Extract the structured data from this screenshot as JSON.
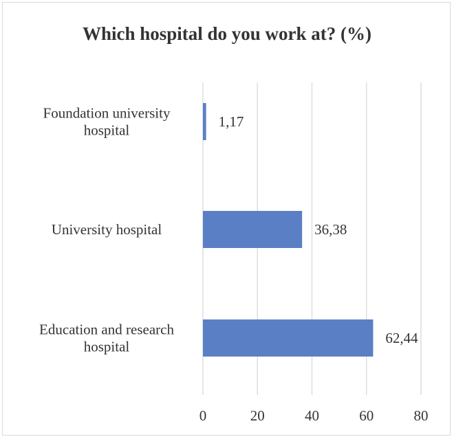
{
  "chart_data": {
    "type": "bar",
    "orientation": "horizontal",
    "title": "Which hospital do you work at? (%)",
    "categories": [
      [
        "Foundation university",
        "hospital"
      ],
      [
        "University hospital"
      ],
      [
        "Education and research",
        "hospital"
      ]
    ],
    "values": [
      1.17,
      36.38,
      62.44
    ],
    "value_labels": [
      "1,17",
      "36,38",
      "62,44"
    ],
    "xlim": [
      0,
      80
    ],
    "xticks": [
      0,
      20,
      40,
      60,
      80
    ],
    "xtick_labels": [
      "0",
      "20",
      "40",
      "60",
      "80"
    ],
    "grid": true,
    "legend": "none",
    "bar_color": "#5a7fc4",
    "xlabel": "",
    "ylabel": ""
  }
}
